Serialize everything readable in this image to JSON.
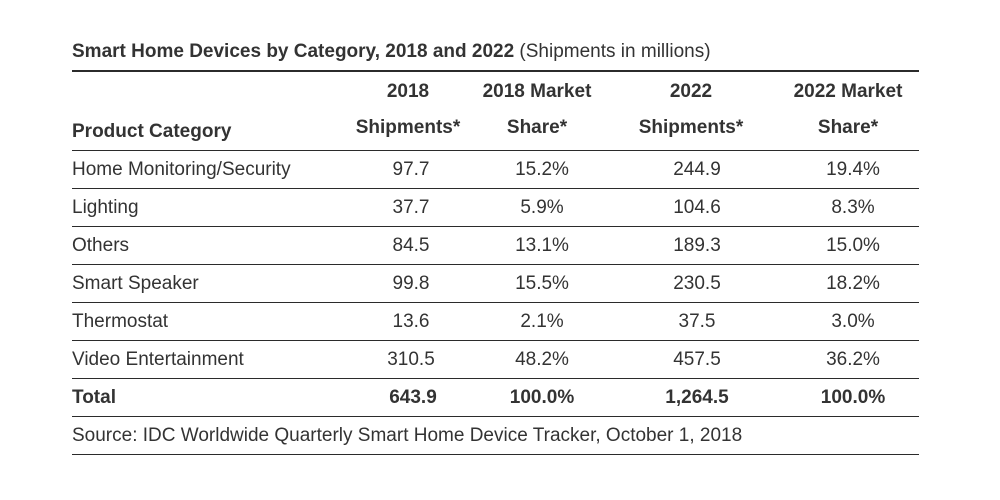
{
  "chart_data": {
    "type": "table",
    "title": "Smart Home Devices by Category, 2018 and 2022",
    "subtitle": "(Shipments in millions)",
    "columns": [
      {
        "line1": "",
        "line2": "Product Category"
      },
      {
        "line1": "2018",
        "line2": "Shipments*"
      },
      {
        "line1": "2018 Market",
        "line2": "Share*"
      },
      {
        "line1": "2022",
        "line2": "Shipments*"
      },
      {
        "line1": "2022 Market",
        "line2": "Share*"
      }
    ],
    "rows": [
      [
        "Home Monitoring/Security",
        "97.7",
        "15.2%",
        "244.9",
        "19.4%"
      ],
      [
        "Lighting",
        "37.7",
        "5.9%",
        "104.6",
        "8.3%"
      ],
      [
        "Others",
        "84.5",
        "13.1%",
        "189.3",
        "15.0%"
      ],
      [
        "Smart Speaker",
        "99.8",
        "15.5%",
        "230.5",
        "18.2%"
      ],
      [
        "Thermostat",
        "13.6",
        "2.1%",
        "37.5",
        "3.0%"
      ],
      [
        "Video Entertainment",
        "310.5",
        "48.2%",
        "457.5",
        "36.2%"
      ]
    ],
    "total": [
      "Total",
      "643.9",
      "100.0%",
      "1,264.5",
      "100.0%"
    ],
    "source": "Source: IDC Worldwide Quarterly Smart Home Device Tracker, October 1, 2018"
  }
}
